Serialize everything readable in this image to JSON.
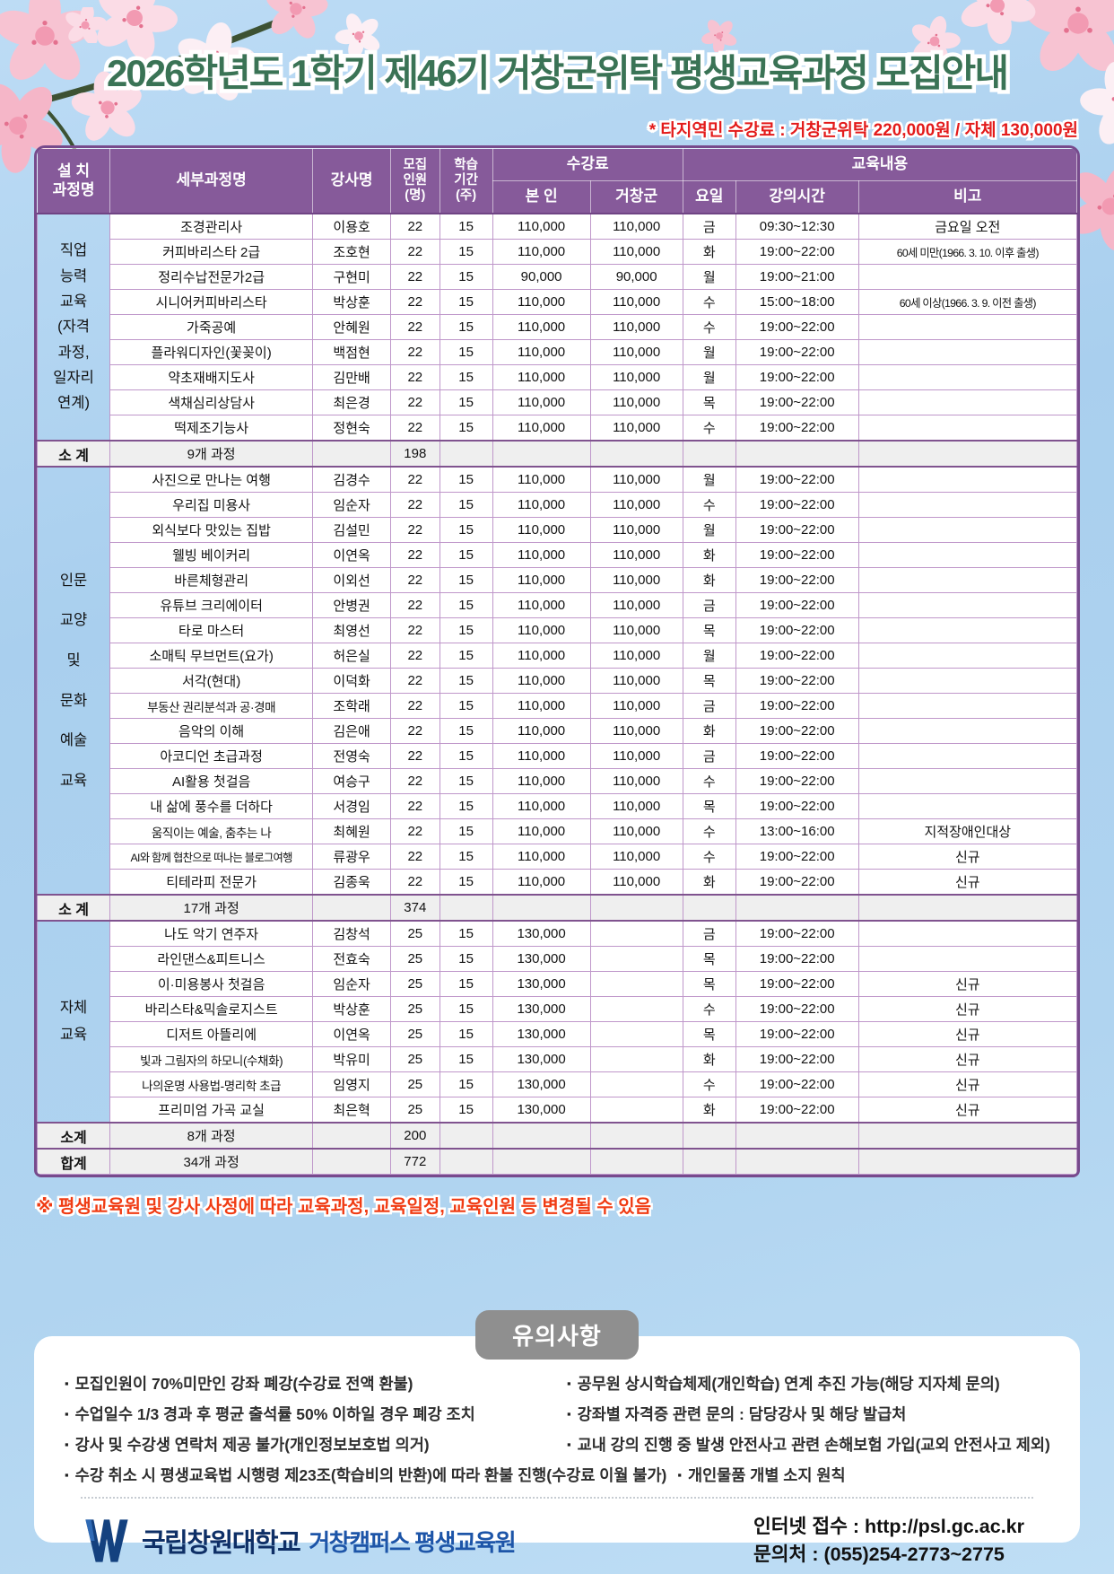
{
  "title": "2026학년도 1학기 제46기 거창군위탁 평생교육과정 모집안내",
  "fee_notice": "* 타지역민 수강료 : 거창군위탁 220,000원 / 자체 130,000원",
  "table": {
    "headers": {
      "category": "설 치\n과정명",
      "course": "세부과정명",
      "instructor": "강사명",
      "capacity": "모집\n인원\n(명)",
      "weeks": "학습\n기간\n(주)",
      "fee_group": "수강료",
      "fee_self": "본 인",
      "fee_geochang": "거창군",
      "content_group": "교육내용",
      "day": "요일",
      "time": "강의시간",
      "note": "비고"
    },
    "sections": [
      {
        "category": "직업\n능력\n교육\n(자격\n과정,\n일자리\n연계)",
        "rows": [
          [
            "조경관리사",
            "이용호",
            "22",
            "15",
            "110,000",
            "110,000",
            "금",
            "09:30~12:30",
            "금요일 오전"
          ],
          [
            "커피바리스타 2급",
            "조호현",
            "22",
            "15",
            "110,000",
            "110,000",
            "화",
            "19:00~22:00",
            "60세 미만(1966. 3. 10. 이후 출생)"
          ],
          [
            "정리수납전문가2급",
            "구현미",
            "22",
            "15",
            "90,000",
            "90,000",
            "월",
            "19:00~21:00",
            ""
          ],
          [
            "시니어커피바리스타",
            "박상훈",
            "22",
            "15",
            "110,000",
            "110,000",
            "수",
            "15:00~18:00",
            "60세 이상(1966. 3. 9. 이전 출생)"
          ],
          [
            "가죽공예",
            "안혜원",
            "22",
            "15",
            "110,000",
            "110,000",
            "수",
            "19:00~22:00",
            ""
          ],
          [
            "플라워디자인(꽃꽂이)",
            "백점현",
            "22",
            "15",
            "110,000",
            "110,000",
            "월",
            "19:00~22:00",
            ""
          ],
          [
            "약초재배지도사",
            "김만배",
            "22",
            "15",
            "110,000",
            "110,000",
            "월",
            "19:00~22:00",
            ""
          ],
          [
            "색채심리상담사",
            "최은경",
            "22",
            "15",
            "110,000",
            "110,000",
            "목",
            "19:00~22:00",
            ""
          ],
          [
            "떡제조기능사",
            "정현숙",
            "22",
            "15",
            "110,000",
            "110,000",
            "수",
            "19:00~22:00",
            ""
          ]
        ],
        "subtotal": {
          "label": "소 계",
          "course": "9개 과정",
          "capacity": "198"
        }
      },
      {
        "category": "인문\n교양\n및\n문화\n예술\n교육",
        "rows": [
          [
            "사진으로 만나는 여행",
            "김경수",
            "22",
            "15",
            "110,000",
            "110,000",
            "월",
            "19:00~22:00",
            ""
          ],
          [
            "우리집 미용사",
            "임순자",
            "22",
            "15",
            "110,000",
            "110,000",
            "수",
            "19:00~22:00",
            ""
          ],
          [
            "외식보다 맛있는 집밥",
            "김설민",
            "22",
            "15",
            "110,000",
            "110,000",
            "월",
            "19:00~22:00",
            ""
          ],
          [
            "웰빙 베이커리",
            "이연옥",
            "22",
            "15",
            "110,000",
            "110,000",
            "화",
            "19:00~22:00",
            ""
          ],
          [
            "바른체형관리",
            "이외선",
            "22",
            "15",
            "110,000",
            "110,000",
            "화",
            "19:00~22:00",
            ""
          ],
          [
            "유튜브 크리에이터",
            "안병권",
            "22",
            "15",
            "110,000",
            "110,000",
            "금",
            "19:00~22:00",
            ""
          ],
          [
            "타로 마스터",
            "최영선",
            "22",
            "15",
            "110,000",
            "110,000",
            "목",
            "19:00~22:00",
            ""
          ],
          [
            "소매틱 무브먼트(요가)",
            "허은실",
            "22",
            "15",
            "110,000",
            "110,000",
            "월",
            "19:00~22:00",
            ""
          ],
          [
            "서각(현대)",
            "이덕화",
            "22",
            "15",
            "110,000",
            "110,000",
            "목",
            "19:00~22:00",
            ""
          ],
          [
            "부동산 권리분석과 공·경매",
            "조학래",
            "22",
            "15",
            "110,000",
            "110,000",
            "금",
            "19:00~22:00",
            ""
          ],
          [
            "음악의 이해",
            "김은애",
            "22",
            "15",
            "110,000",
            "110,000",
            "화",
            "19:00~22:00",
            ""
          ],
          [
            "아코디언 초급과정",
            "전영숙",
            "22",
            "15",
            "110,000",
            "110,000",
            "금",
            "19:00~22:00",
            ""
          ],
          [
            "AI활용 첫걸음",
            "여승구",
            "22",
            "15",
            "110,000",
            "110,000",
            "수",
            "19:00~22:00",
            ""
          ],
          [
            "내 삶에 풍수를 더하다",
            "서경임",
            "22",
            "15",
            "110,000",
            "110,000",
            "목",
            "19:00~22:00",
            ""
          ],
          [
            "움직이는 예술, 춤추는 나",
            "최혜원",
            "22",
            "15",
            "110,000",
            "110,000",
            "수",
            "13:00~16:00",
            "지적장애인대상"
          ],
          [
            "AI와 함께 협찬으로 떠나는 블로그여행",
            "류광우",
            "22",
            "15",
            "110,000",
            "110,000",
            "수",
            "19:00~22:00",
            "신규"
          ],
          [
            "티테라피 전문가",
            "김종욱",
            "22",
            "15",
            "110,000",
            "110,000",
            "화",
            "19:00~22:00",
            "신규"
          ]
        ],
        "subtotal": {
          "label": "소 계",
          "course": "17개 과정",
          "capacity": "374"
        }
      },
      {
        "category": "자체\n교육",
        "rows": [
          [
            "나도 악기 연주자",
            "김창석",
            "25",
            "15",
            "130,000",
            "",
            "금",
            "19:00~22:00",
            ""
          ],
          [
            "라인댄스&피트니스",
            "전효숙",
            "25",
            "15",
            "130,000",
            "",
            "목",
            "19:00~22:00",
            ""
          ],
          [
            "이·미용봉사 첫걸음",
            "임순자",
            "25",
            "15",
            "130,000",
            "",
            "목",
            "19:00~22:00",
            "신규"
          ],
          [
            "바리스타&믹솔로지스트",
            "박상훈",
            "25",
            "15",
            "130,000",
            "",
            "수",
            "19:00~22:00",
            "신규"
          ],
          [
            "디저트 아뜰리에",
            "이연옥",
            "25",
            "15",
            "130,000",
            "",
            "목",
            "19:00~22:00",
            "신규"
          ],
          [
            "빛과 그림자의 하모니(수채화)",
            "박유미",
            "25",
            "15",
            "130,000",
            "",
            "화",
            "19:00~22:00",
            "신규"
          ],
          [
            "나의운명 사용법-명리학 초급",
            "임영지",
            "25",
            "15",
            "130,000",
            "",
            "수",
            "19:00~22:00",
            "신규"
          ],
          [
            "프리미엄 가곡 교실",
            "최은혁",
            "25",
            "15",
            "130,000",
            "",
            "화",
            "19:00~22:00",
            "신규"
          ]
        ],
        "subtotal": {
          "label": "소계",
          "course": "8개 과정",
          "capacity": "200"
        }
      }
    ],
    "total": {
      "label": "합계",
      "course": "34개 과정",
      "capacity": "772"
    }
  },
  "footnote": "※ 평생교육원 및 강사 사정에 따라 교육과정, 교육일정, 교육인원 등 변경될 수 있음",
  "notice": {
    "badge": "유의사항",
    "left_items": [
      "모집인원이 70%미만인 강좌 폐강(수강료 전액 환불)",
      "수업일수 1/3 경과 후 평균 출석률 50% 이하일 경우 폐강 조치",
      "강사 및 수강생 연락처 제공 불가(개인정보보호법 의거)",
      "수강 취소 시 평생교육법 시행령 제23조(학습비의 반환)에 따라 환불 진행(수강료 이월 불가)"
    ],
    "right_items": [
      "공무원 상시학습체제(개인학습) 연계 추진 가능(해당 지자체 문의)",
      "강좌별 자격증 관련 문의 : 담당강사 및 해당 발급처",
      "교내 강의 진행 중 발생 안전사고 관련 손해보험 가입(교외 안전사고 제외)",
      "개인물품 개별 소지 원칙"
    ]
  },
  "footer": {
    "university": "국립창원대학교",
    "campus": "거창캠퍼스 평생교육원",
    "internet": "인터넷 접수 : http://psl.gc.ac.kr",
    "phone": "문의처 : (055)254-2773~2775"
  },
  "colors": {
    "title_green": "#3a7355",
    "notice_red": "#e31b1b",
    "footnote_red": "#f03c14",
    "header_purple": "#865a9a",
    "grid_purple": "#bf97ca",
    "page_blue": "#a9cfee",
    "badge_gray": "#8f8f8f",
    "logo_navy": "#0e2f66",
    "logo_blue": "#1d55a8"
  }
}
